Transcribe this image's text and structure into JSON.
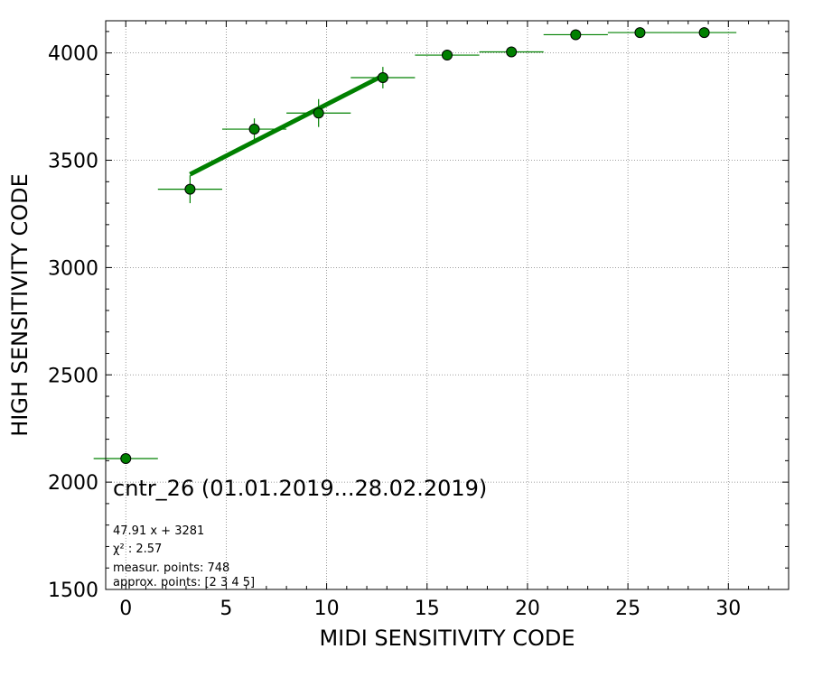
{
  "chart_data": {
    "type": "scatter",
    "xlabel": "MIDI SENSITIVITY CODE",
    "ylabel": "HIGH SENSITIVITY CODE",
    "xlim": [
      -1,
      33
    ],
    "ylim": [
      1500,
      4150
    ],
    "xticks": [
      0,
      5,
      10,
      15,
      20,
      25,
      30
    ],
    "yticks": [
      1500,
      2000,
      2500,
      3000,
      3500,
      4000
    ],
    "grid": true,
    "marker_color": "#008000",
    "points": [
      {
        "x": 0.0,
        "y": 2110,
        "xerr": 1.6,
        "yerr": 0
      },
      {
        "x": 3.2,
        "y": 3365,
        "xerr": 1.6,
        "yerr": 65
      },
      {
        "x": 6.4,
        "y": 3645,
        "xerr": 1.6,
        "yerr": 50
      },
      {
        "x": 9.6,
        "y": 3720,
        "xerr": 1.6,
        "yerr": 65
      },
      {
        "x": 12.8,
        "y": 3885,
        "xerr": 1.6,
        "yerr": 50
      },
      {
        "x": 16.0,
        "y": 3990,
        "xerr": 1.6,
        "yerr": 25
      },
      {
        "x": 19.2,
        "y": 4005,
        "xerr": 1.6,
        "yerr": 25
      },
      {
        "x": 22.4,
        "y": 4085,
        "xerr": 1.6,
        "yerr": 0
      },
      {
        "x": 25.6,
        "y": 4095,
        "xerr": 1.6,
        "yerr": 0
      },
      {
        "x": 28.8,
        "y": 4095,
        "xerr": 1.6,
        "yerr": 0
      }
    ],
    "fit": {
      "slope": 47.91,
      "intercept": 3281,
      "x_range": [
        3.2,
        12.8
      ],
      "color": "#008000"
    },
    "annotations": {
      "title": "cntr_26 (01.01.2019...28.02.2019)",
      "fit_label": "47.91 x + 3281",
      "chi2_label": "χ² : 2.57",
      "measur_points": "measur. points: 748",
      "approx_points": "approx. points: [2 3 4 5]"
    }
  }
}
